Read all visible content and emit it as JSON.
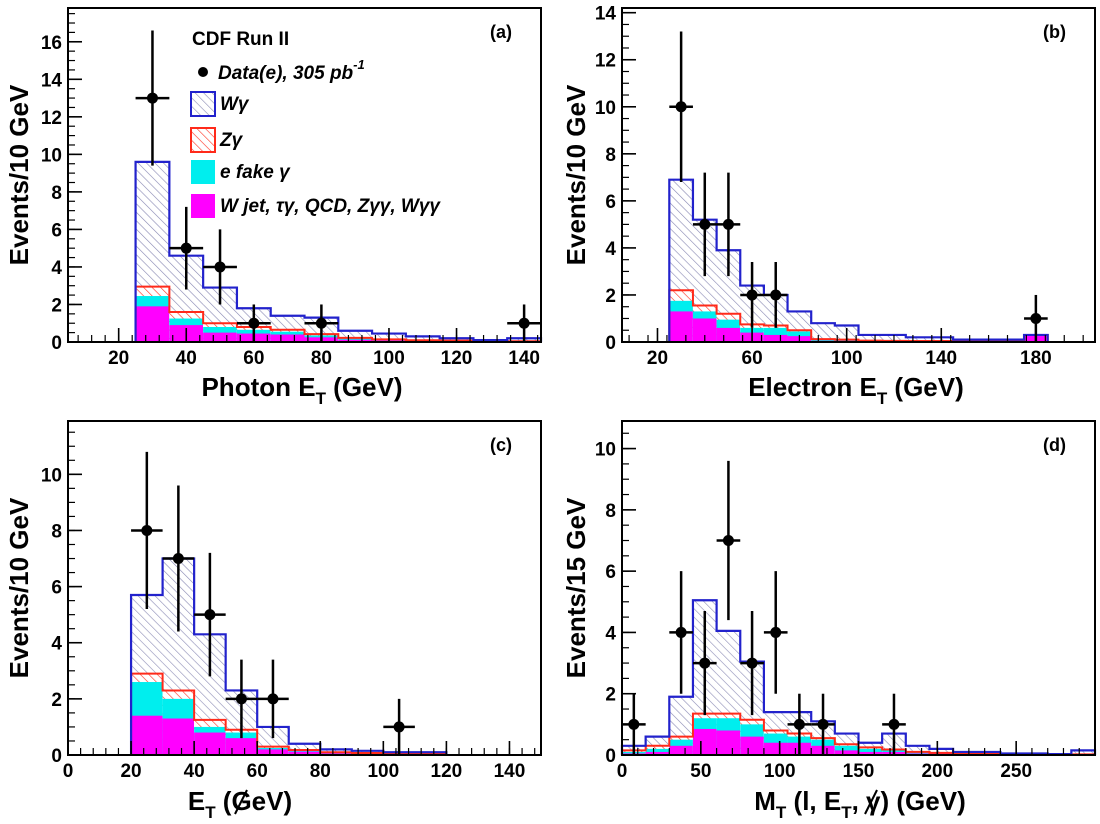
{
  "colors": {
    "w_gamma": "#2222cc",
    "hatch": "#8a8ab4",
    "z_gamma": "#ff2a1a",
    "e_fake": "#00eeee",
    "w_jet": "#ff00ff",
    "data": "#000000",
    "frame": "#000000"
  },
  "legend": {
    "title": "CDF Run II",
    "data_label": "Data(e), 305 pb",
    "data_lumi_exp": "-1",
    "w_gamma": "Wγ",
    "z_gamma": "Zγ",
    "e_fake": "e fake γ",
    "w_jet": "W jet, τγ, QCD, Zγγ, Wγγ"
  },
  "chart_data": [
    {
      "type": "histogram",
      "panel_label": "(a)",
      "xlabel": "Photon E",
      "xlabel_sub": "T",
      "xlabel_tail": " (GeV)",
      "ylabel": "Events/10 GeV",
      "xlim": [
        5,
        145
      ],
      "ylim": [
        0,
        17.8
      ],
      "xticks": [
        20,
        40,
        60,
        80,
        100,
        120,
        140
      ],
      "yticks": [
        0,
        2,
        4,
        6,
        8,
        10,
        12,
        14,
        16
      ],
      "bin_edges": [
        25,
        35,
        45,
        55,
        65,
        75,
        85,
        95,
        105,
        115,
        125,
        135,
        145
      ],
      "stacks": {
        "w_jet": [
          1.9,
          0.9,
          0.5,
          0.45,
          0.4,
          0.25,
          0.12,
          0.08,
          0.05,
          0.04,
          0.03,
          0.02
        ],
        "e_fake": [
          2.45,
          1.25,
          0.8,
          0.65,
          0.55,
          0.35,
          0.18,
          0.12,
          0.07,
          0.06,
          0.04,
          0.03
        ],
        "z_gamma": [
          2.95,
          1.6,
          1.0,
          0.8,
          0.65,
          0.42,
          0.22,
          0.14,
          0.09,
          0.07,
          0.05,
          0.04
        ],
        "total": [
          9.6,
          4.6,
          2.9,
          1.8,
          1.4,
          1.3,
          0.6,
          0.45,
          0.3,
          0.2,
          0.1,
          0.2
        ]
      },
      "data_points": [
        {
          "x": 30,
          "y": 13,
          "err": 3.6
        },
        {
          "x": 40,
          "y": 5,
          "err": 2.2
        },
        {
          "x": 50,
          "y": 4,
          "err": 2.0
        },
        {
          "x": 60,
          "y": 1,
          "err": 1.0
        },
        {
          "x": 80,
          "y": 1,
          "err": 1.0
        },
        {
          "x": 140,
          "y": 1,
          "err": 1.0
        }
      ]
    },
    {
      "type": "histogram",
      "panel_label": "(b)",
      "xlabel": "Electron E",
      "xlabel_sub": "T",
      "xlabel_tail": " (GeV)",
      "ylabel": "Events/10 GeV",
      "xlim": [
        5,
        205
      ],
      "ylim": [
        0,
        14.2
      ],
      "xticks": [
        20,
        60,
        100,
        140,
        180
      ],
      "yticks": [
        0,
        2,
        4,
        6,
        8,
        10,
        12,
        14
      ],
      "bin_edges": [
        25,
        35,
        45,
        55,
        65,
        75,
        85,
        95,
        105,
        115,
        125,
        135,
        145,
        155,
        165,
        175,
        185
      ],
      "stacks": {
        "w_jet": [
          1.3,
          1.0,
          0.6,
          0.4,
          0.3,
          0.25,
          0.05,
          0.05,
          0.03,
          0.03,
          0.02,
          0.02,
          0.02,
          0.02,
          0.02,
          0.3
        ],
        "e_fake": [
          1.75,
          1.3,
          0.95,
          0.6,
          0.6,
          0.45,
          0.1,
          0.08,
          0.05,
          0.04,
          0.03,
          0.03,
          0.03,
          0.03,
          0.03,
          0.3
        ],
        "z_gamma": [
          2.2,
          1.55,
          1.2,
          0.75,
          0.7,
          0.5,
          0.12,
          0.1,
          0.06,
          0.05,
          0.04,
          0.04,
          0.04,
          0.04,
          0.04,
          0.3
        ],
        "total": [
          6.9,
          5.2,
          3.9,
          2.4,
          2.0,
          1.3,
          0.8,
          0.7,
          0.3,
          0.3,
          0.2,
          0.2,
          0.1,
          0.1,
          0.1,
          0.3
        ]
      },
      "data_points": [
        {
          "x": 30,
          "y": 10,
          "err": 3.2
        },
        {
          "x": 40,
          "y": 5,
          "err": 2.2
        },
        {
          "x": 50,
          "y": 5,
          "err": 2.2
        },
        {
          "x": 60,
          "y": 2,
          "err": 1.4
        },
        {
          "x": 70,
          "y": 2,
          "err": 1.4
        },
        {
          "x": 180,
          "y": 1,
          "err": 1.0
        }
      ]
    },
    {
      "type": "histogram",
      "panel_label": "(c)",
      "xlabel": "E",
      "xlabel_sub": "T",
      "xlabel_tail": " (GeV)",
      "ylabel": "Events/10 GeV",
      "xlim": [
        0,
        150
      ],
      "ylim": [
        0,
        11.9
      ],
      "xticks": [
        0,
        20,
        40,
        60,
        80,
        100,
        120,
        140
      ],
      "yticks": [
        0,
        2,
        4,
        6,
        8,
        10
      ],
      "bin_edges": [
        20,
        30,
        40,
        50,
        60,
        70,
        80,
        90,
        100,
        110,
        120
      ],
      "stacks": {
        "w_jet": [
          1.4,
          1.3,
          0.8,
          0.6,
          0.2,
          0.12,
          0.06,
          0.05,
          0.03,
          0.02
        ],
        "e_fake": [
          2.6,
          2.0,
          1.0,
          0.8,
          0.25,
          0.15,
          0.08,
          0.06,
          0.04,
          0.03
        ],
        "z_gamma": [
          2.9,
          2.3,
          1.25,
          0.9,
          0.3,
          0.18,
          0.1,
          0.07,
          0.05,
          0.04
        ],
        "total": [
          5.7,
          7.0,
          4.3,
          2.3,
          1.0,
          0.4,
          0.2,
          0.15,
          0.1,
          0.1
        ]
      },
      "data_points": [
        {
          "x": 25,
          "y": 8,
          "err": 2.8
        },
        {
          "x": 35,
          "y": 7,
          "err": 2.6
        },
        {
          "x": 45,
          "y": 5,
          "err": 2.2
        },
        {
          "x": 55,
          "y": 2,
          "err": 1.4
        },
        {
          "x": 65,
          "y": 2,
          "err": 1.4
        },
        {
          "x": 105,
          "y": 1,
          "err": 1.0
        }
      ]
    },
    {
      "type": "histogram",
      "panel_label": "(d)",
      "xlabel": "M",
      "xlabel_sub": "T",
      "xlabel_tail": " (l, E",
      "xlabel_sub2": "T",
      "xlabel_tail2": ", γ) (GeV)",
      "ylabel": "Events/15 GeV",
      "xlim": [
        0,
        300
      ],
      "ylim": [
        0,
        10.9
      ],
      "xticks": [
        0,
        50,
        100,
        150,
        200,
        250
      ],
      "yticks": [
        0,
        2,
        4,
        6,
        8,
        10
      ],
      "bin_edges": [
        0,
        15,
        30,
        45,
        60,
        75,
        90,
        105,
        120,
        135,
        150,
        165,
        180,
        195,
        210,
        225,
        240,
        255,
        270,
        285,
        300
      ],
      "stacks": {
        "w_jet": [
          0.05,
          0.1,
          0.3,
          0.85,
          0.8,
          0.6,
          0.4,
          0.4,
          0.3,
          0.15,
          0.1,
          0.1,
          0.05,
          0.05,
          0.03,
          0.02,
          0.02,
          0.01,
          0.01,
          0.01
        ],
        "e_fake": [
          0.1,
          0.2,
          0.5,
          1.2,
          1.2,
          1.0,
          0.7,
          0.6,
          0.5,
          0.3,
          0.2,
          0.15,
          0.08,
          0.06,
          0.04,
          0.03,
          0.02,
          0.01,
          0.01,
          0.01
        ],
        "z_gamma": [
          0.15,
          0.3,
          0.6,
          1.35,
          1.35,
          1.15,
          0.8,
          0.7,
          0.55,
          0.35,
          0.25,
          0.18,
          0.1,
          0.07,
          0.05,
          0.04,
          0.03,
          0.02,
          0.02,
          0.02
        ],
        "total": [
          0.3,
          0.6,
          1.9,
          5.05,
          4.05,
          3.05,
          1.4,
          1.4,
          1.1,
          0.7,
          0.4,
          0.7,
          0.3,
          0.2,
          0.1,
          0.1,
          0.05,
          0.05,
          0.03,
          0.15
        ]
      },
      "data_points": [
        {
          "x": 7.5,
          "y": 1,
          "err": 1.0
        },
        {
          "x": 37.5,
          "y": 4,
          "err": 2.0
        },
        {
          "x": 52.5,
          "y": 3,
          "err": 1.7
        },
        {
          "x": 67.5,
          "y": 7,
          "err": 2.6
        },
        {
          "x": 82.5,
          "y": 3,
          "err": 1.7
        },
        {
          "x": 97.5,
          "y": 4,
          "err": 2.0
        },
        {
          "x": 112.5,
          "y": 1,
          "err": 1.0
        },
        {
          "x": 127.5,
          "y": 1,
          "err": 1.0
        },
        {
          "x": 172.5,
          "y": 1,
          "err": 1.0
        }
      ]
    }
  ]
}
